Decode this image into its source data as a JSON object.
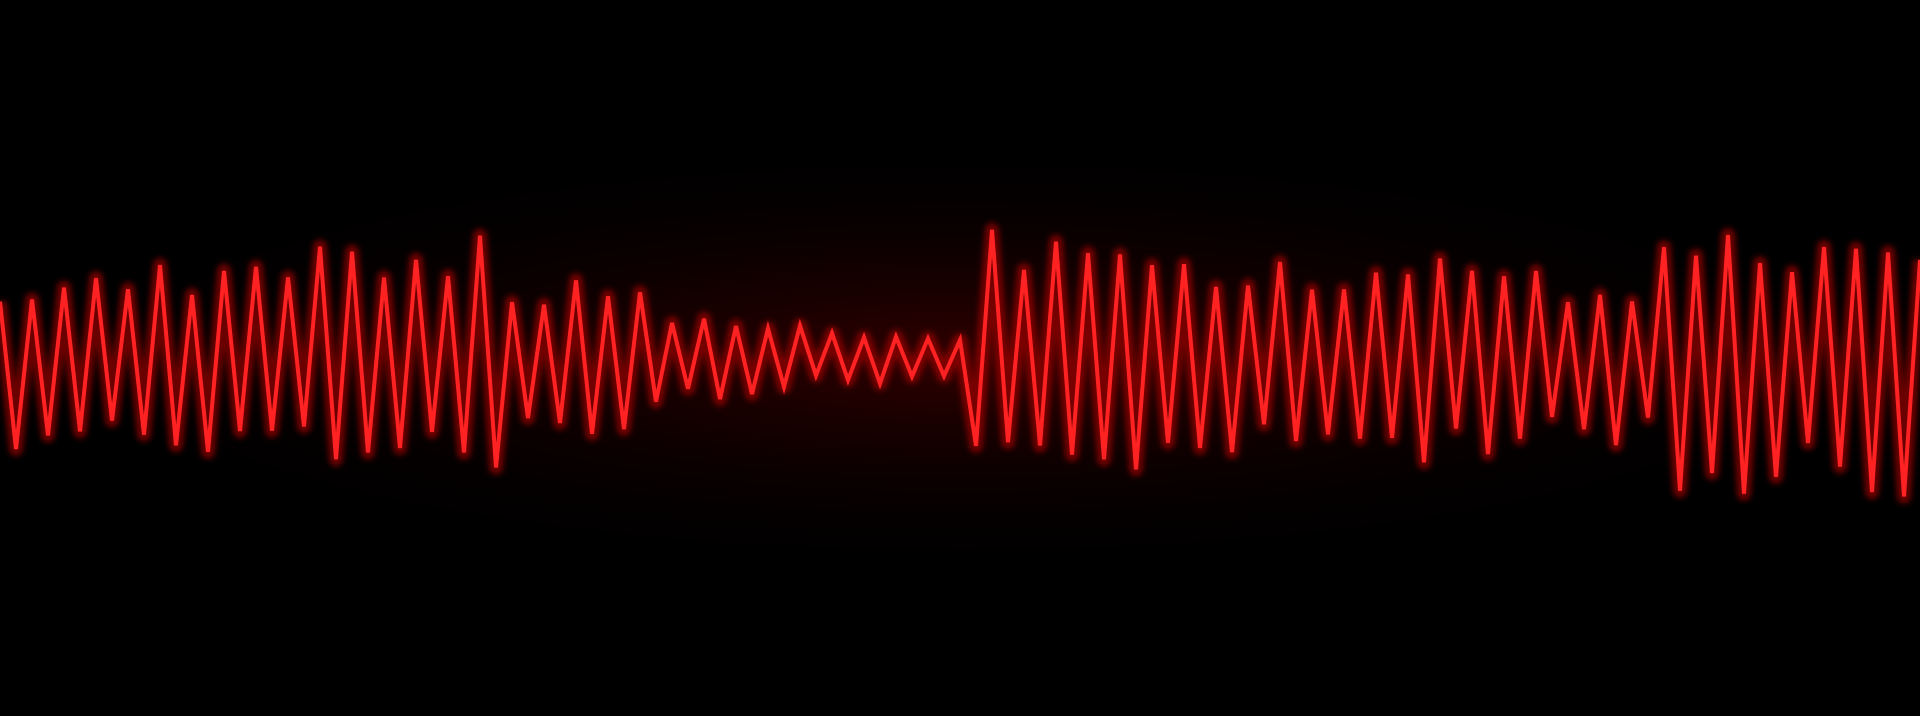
{
  "image": {
    "subject": "waveform",
    "colors": {
      "background": "#000000",
      "line": "#ff2222",
      "glow": "#b00000",
      "spike": "#7a0000"
    },
    "waveform": {
      "oscillation_count": 60,
      "segments": [
        {
          "from": 0.0,
          "to": 0.16,
          "amplitude": 0.42,
          "spike": 0.7
        },
        {
          "from": 0.16,
          "to": 0.26,
          "amplitude": 0.55,
          "spike": 0.95
        },
        {
          "from": 0.26,
          "to": 0.34,
          "amplitude": 0.35,
          "spike": 0.6
        },
        {
          "from": 0.34,
          "to": 0.42,
          "amplitude": 0.2,
          "spike": 0.45
        },
        {
          "from": 0.42,
          "to": 0.5,
          "amplitude": 0.12,
          "spike": 0.35
        },
        {
          "from": 0.5,
          "to": 0.62,
          "amplitude": 0.62,
          "spike": 0.95
        },
        {
          "from": 0.62,
          "to": 0.78,
          "amplitude": 0.48,
          "spike": 0.8
        },
        {
          "from": 0.78,
          "to": 0.86,
          "amplitude": 0.4,
          "spike": 0.7
        },
        {
          "from": 0.86,
          "to": 1.0,
          "amplitude": 0.62,
          "spike": 1.0
        }
      ]
    }
  }
}
